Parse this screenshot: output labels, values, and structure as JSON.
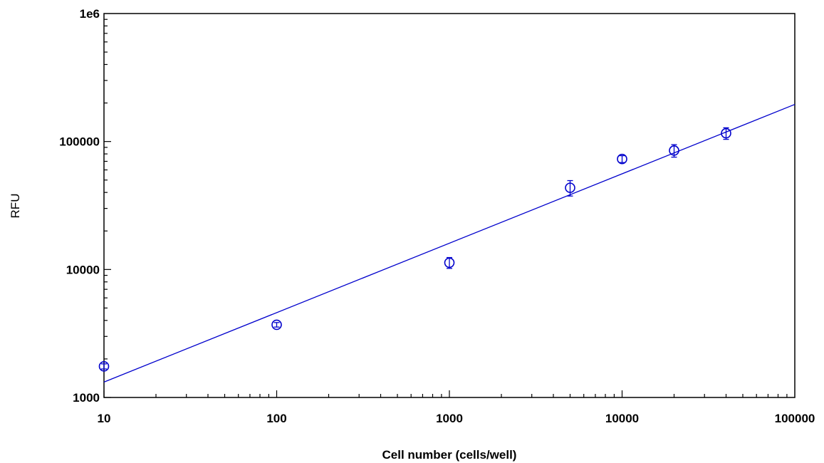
{
  "chart_data": {
    "type": "scatter",
    "title": "",
    "xlabel": "Cell number (cells/well)",
    "ylabel": "RFU",
    "xscale": "log",
    "yscale": "log",
    "xlim": [
      10,
      100000
    ],
    "ylim": [
      1000,
      1000000
    ],
    "x_tick_labels": [
      "10",
      "100",
      "1000",
      "10000",
      "100000"
    ],
    "y_tick_labels": [
      "1000",
      "10000",
      "100000",
      "1e6"
    ],
    "grid": false,
    "legend": "none",
    "color": "#0000cc",
    "series": [
      {
        "marker": "open-circle",
        "x": [
          10,
          100,
          1000,
          5000,
          10000,
          20000,
          40000
        ],
        "y": [
          1750,
          3700,
          11300,
          43500,
          73000,
          85000,
          116000
        ],
        "y_err": [
          80,
          150,
          1100,
          6000,
          4500,
          9500,
          12000
        ]
      }
    ],
    "fit_line": {
      "type": "power-law",
      "x": [
        10,
        100000
      ],
      "y": [
        1320,
        195000
      ]
    }
  }
}
